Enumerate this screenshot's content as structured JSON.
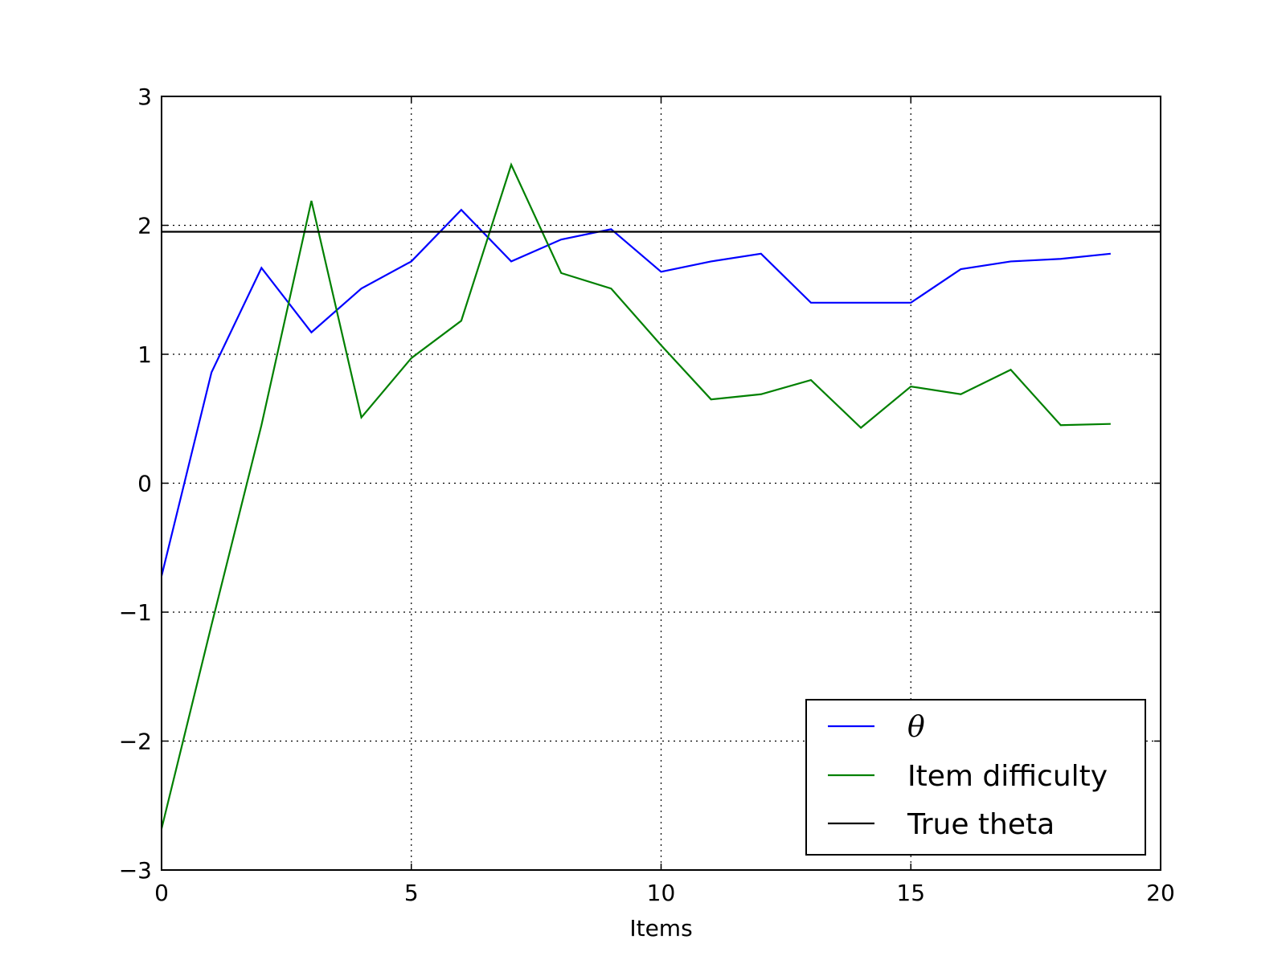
{
  "chart_data": {
    "type": "line",
    "title": "",
    "xlabel": "Items",
    "ylabel": "",
    "xlim": [
      0,
      20
    ],
    "ylim": [
      -3,
      3
    ],
    "xticks": [
      0,
      5,
      10,
      15,
      20
    ],
    "yticks": [
      -3,
      -2,
      -1,
      0,
      1,
      2,
      3
    ],
    "xtick_labels": [
      "0",
      "5",
      "10",
      "15",
      "20"
    ],
    "ytick_labels": [
      "−3",
      "−2",
      "−1",
      "0",
      "1",
      "2",
      "3"
    ],
    "grid": true,
    "legend_position": "lower right",
    "x": [
      0,
      1,
      2,
      3,
      4,
      5,
      6,
      7,
      8,
      9,
      10,
      11,
      12,
      13,
      14,
      15,
      16,
      17,
      18,
      19
    ],
    "series": [
      {
        "name": "θ",
        "color": "#0000ff",
        "values": [
          -0.72,
          0.86,
          1.67,
          1.17,
          1.51,
          1.72,
          2.12,
          1.72,
          1.89,
          1.97,
          1.64,
          1.72,
          1.78,
          1.4,
          1.4,
          1.4,
          1.66,
          1.72,
          1.74,
          1.78
        ]
      },
      {
        "name": "Item difficulty",
        "color": "#008000",
        "values": [
          -2.68,
          -1.1,
          0.45,
          2.19,
          0.51,
          0.97,
          1.26,
          2.47,
          1.63,
          1.51,
          1.07,
          0.65,
          0.69,
          0.8,
          0.43,
          0.75,
          0.69,
          0.88,
          0.45,
          0.46
        ]
      },
      {
        "name": "True theta",
        "color": "#000000",
        "constant": 1.95
      }
    ]
  }
}
